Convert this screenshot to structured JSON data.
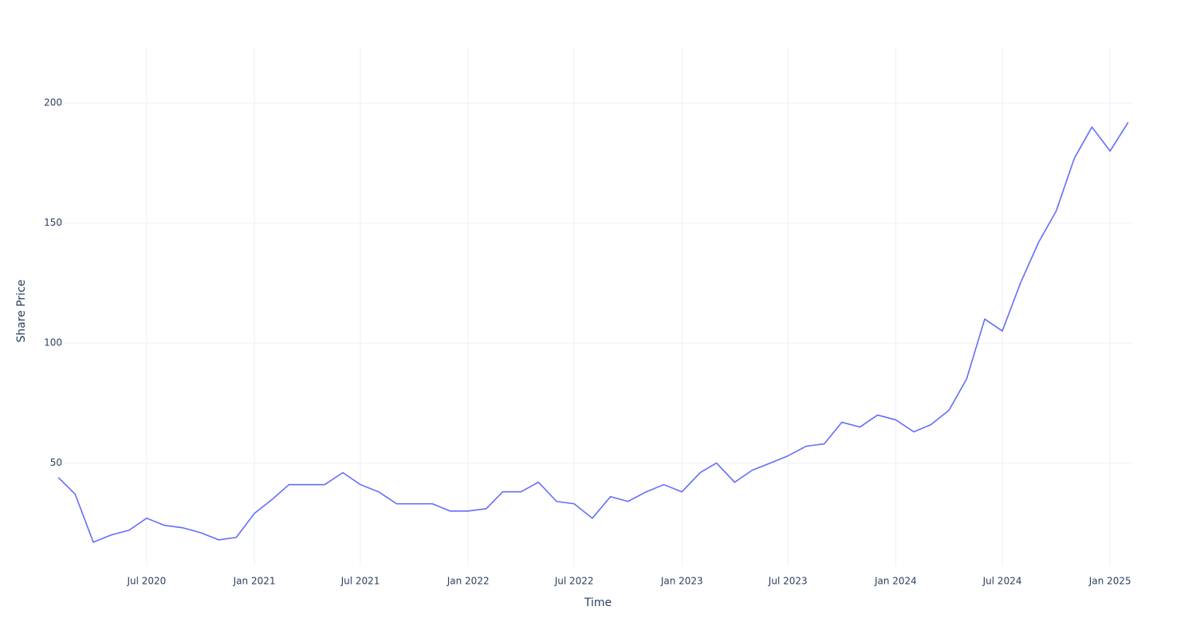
{
  "chart_data": {
    "type": "line",
    "xlabel": "Time",
    "ylabel": "Share Price",
    "x": [
      "2020-02",
      "2020-03",
      "2020-04",
      "2020-05",
      "2020-06",
      "2020-07",
      "2020-08",
      "2020-09",
      "2020-10",
      "2020-11",
      "2020-12",
      "2021-01",
      "2021-02",
      "2021-03",
      "2021-04",
      "2021-05",
      "2021-06",
      "2021-07",
      "2021-08",
      "2021-09",
      "2021-10",
      "2021-11",
      "2021-12",
      "2022-01",
      "2022-02",
      "2022-03",
      "2022-04",
      "2022-05",
      "2022-06",
      "2022-07",
      "2022-08",
      "2022-09",
      "2022-10",
      "2022-11",
      "2022-12",
      "2023-01",
      "2023-02",
      "2023-03",
      "2023-04",
      "2023-05",
      "2023-06",
      "2023-07",
      "2023-08",
      "2023-09",
      "2023-10",
      "2023-11",
      "2023-12",
      "2024-01",
      "2024-02",
      "2024-03",
      "2024-04",
      "2024-05",
      "2024-06",
      "2024-07",
      "2024-08",
      "2024-09",
      "2024-10",
      "2024-11",
      "2024-12",
      "2025-01",
      "2025-02"
    ],
    "series": [
      {
        "name": "Share Price",
        "color": "#636efa",
        "values": [
          44,
          37,
          17,
          20,
          22,
          27,
          24,
          23,
          21,
          18,
          19,
          29,
          35,
          41,
          41,
          41,
          46,
          41,
          38,
          33,
          33,
          33,
          30,
          30,
          31,
          38,
          38,
          42,
          34,
          33,
          27,
          36,
          34,
          38,
          41,
          38,
          46,
          50,
          42,
          47,
          50,
          53,
          57,
          58,
          67,
          65,
          70,
          68,
          63,
          66,
          72,
          85,
          110,
          105,
          125,
          142,
          155,
          177,
          190,
          180,
          192
        ]
      }
    ],
    "xlim": [
      "2020-02",
      "2025-02"
    ],
    "xticks": [
      {
        "value": "2020-07",
        "label": "Jul 2020"
      },
      {
        "value": "2021-01",
        "label": "Jan 2021"
      },
      {
        "value": "2021-07",
        "label": "Jul 2021"
      },
      {
        "value": "2022-01",
        "label": "Jan 2022"
      },
      {
        "value": "2022-07",
        "label": "Jul 2022"
      },
      {
        "value": "2023-01",
        "label": "Jan 2023"
      },
      {
        "value": "2023-07",
        "label": "Jul 2023"
      },
      {
        "value": "2024-01",
        "label": "Jan 2024"
      },
      {
        "value": "2024-07",
        "label": "Jul 2024"
      },
      {
        "value": "2025-01",
        "label": "Jan 2025"
      }
    ],
    "ylim": [
      7,
      223
    ],
    "yticks": [
      50,
      100,
      150,
      200
    ],
    "grid": true
  }
}
